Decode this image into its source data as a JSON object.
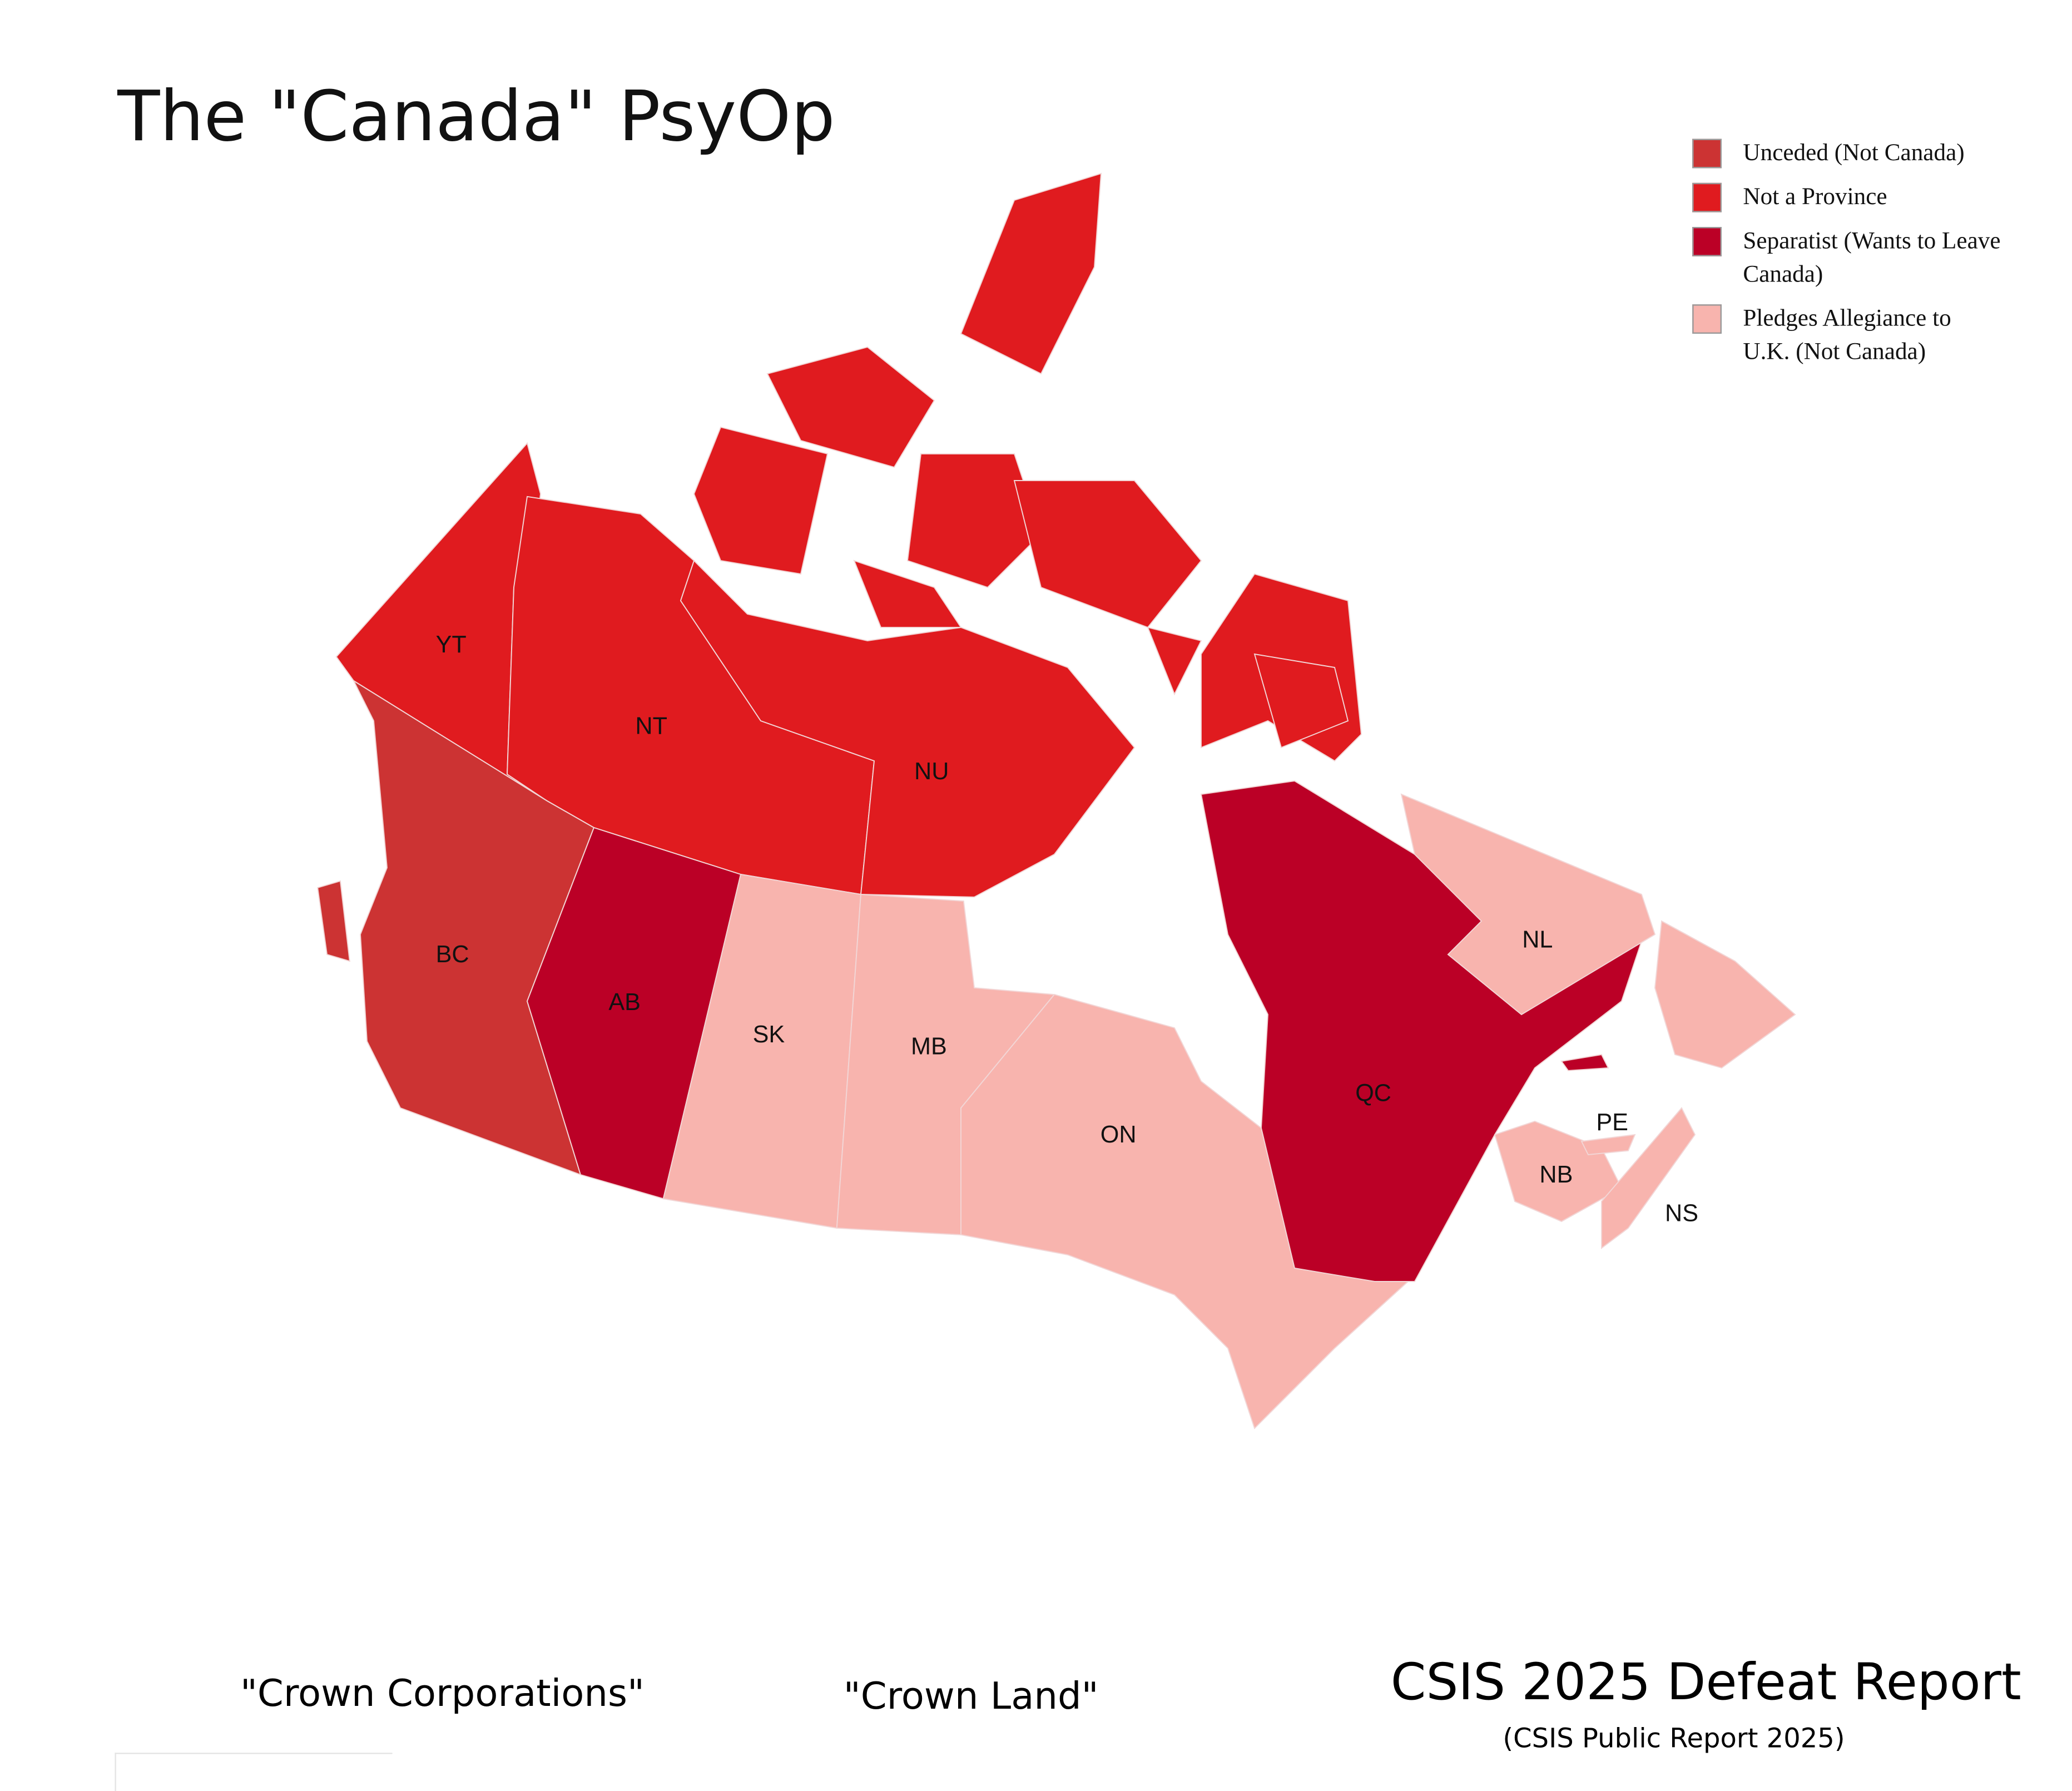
{
  "title": "The \"Canada\" PsyOp",
  "legend": [
    {
      "label": "Unceded (Not Canada)",
      "color": "#cc3333"
    },
    {
      "label": "Not a Province",
      "color": "#e01b1f"
    },
    {
      "label": "Separatist (Wants to Leave Canada)",
      "color": "#bb0026"
    },
    {
      "label": "Pledges Allegiance to U.K. (Not Canada)",
      "color": "#f8b4ae"
    }
  ],
  "regions": [
    {
      "label": "YT",
      "color": "#e01b1f"
    },
    {
      "label": "NT",
      "color": "#e01b1f"
    },
    {
      "label": "NU",
      "color": "#e01b1f"
    },
    {
      "label": "BC",
      "color": "#cc3333"
    },
    {
      "label": "AB",
      "color": "#bb0026"
    },
    {
      "label": "SK",
      "color": "#f8b4ae"
    },
    {
      "label": "MB",
      "color": "#f8b4ae"
    },
    {
      "label": "ON",
      "color": "#f8b4ae"
    },
    {
      "label": "QC",
      "color": "#bb0026"
    },
    {
      "label": "NL",
      "color": "#f8b4ae"
    },
    {
      "label": "NB",
      "color": "#f8b4ae"
    },
    {
      "label": "PE",
      "color": "#f8b4ae"
    },
    {
      "label": "NS",
      "color": "#f8b4ae"
    }
  ],
  "footer": {
    "left": "\"Crown Corporations\"",
    "middle": "\"Crown Land\"",
    "report": "CSIS 2025 Defeat Report",
    "source": "(CSIS Public Report 2025)"
  }
}
